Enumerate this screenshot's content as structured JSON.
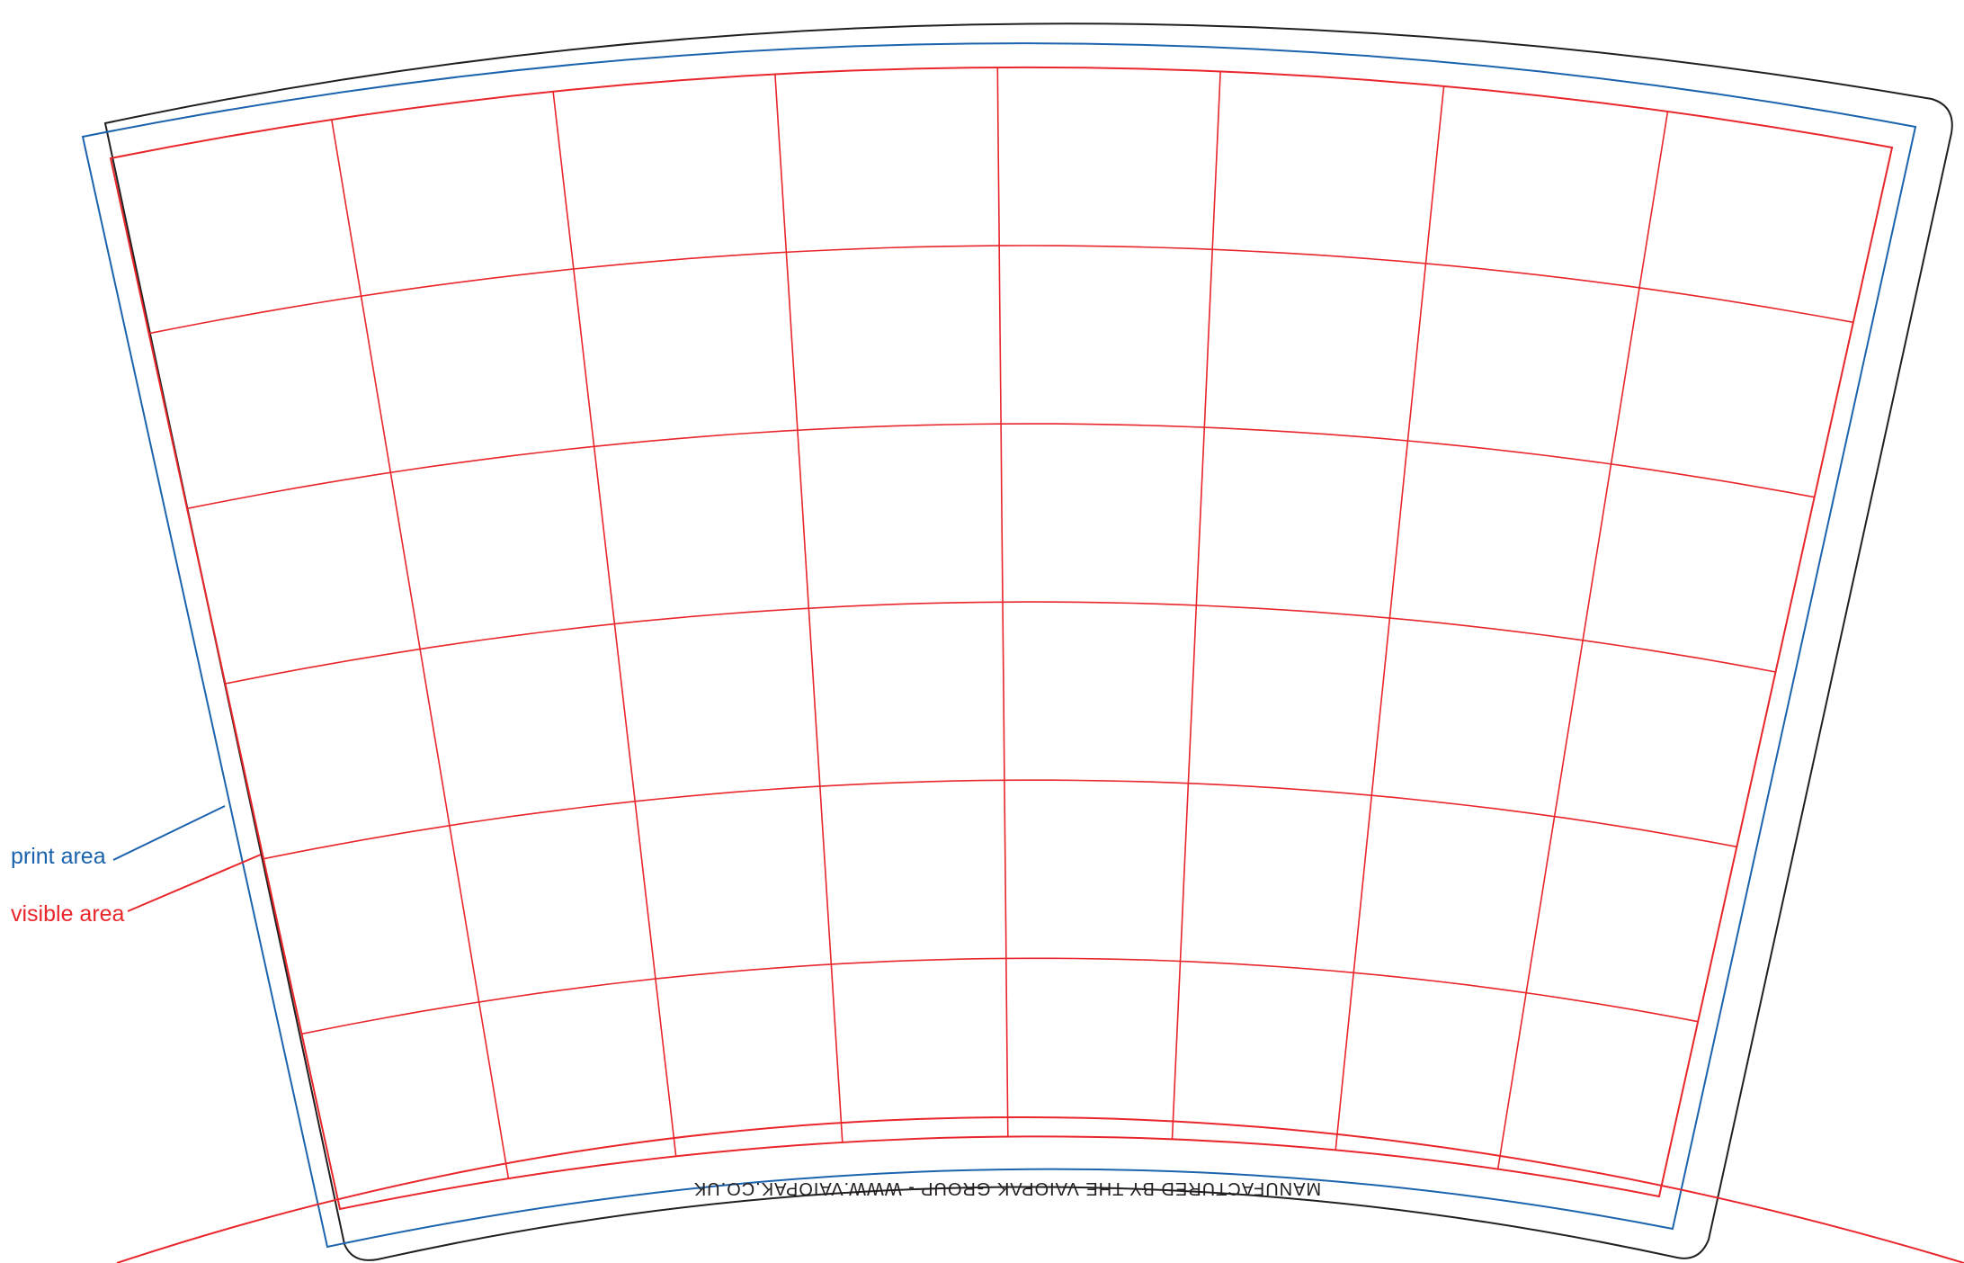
{
  "template": {
    "legend": {
      "print_area": "print area",
      "visible_area": "visible area"
    },
    "footer_text": "MANUFACTURED BY THE VAIOPAK GROUP - WWW.VAIOPAK.CO.UK",
    "grid": {
      "columns": 8,
      "rows": 6
    },
    "colors": {
      "cut_line": "#231f20",
      "print_area": "#1c63ad",
      "visible_area": "#e8262b"
    }
  }
}
